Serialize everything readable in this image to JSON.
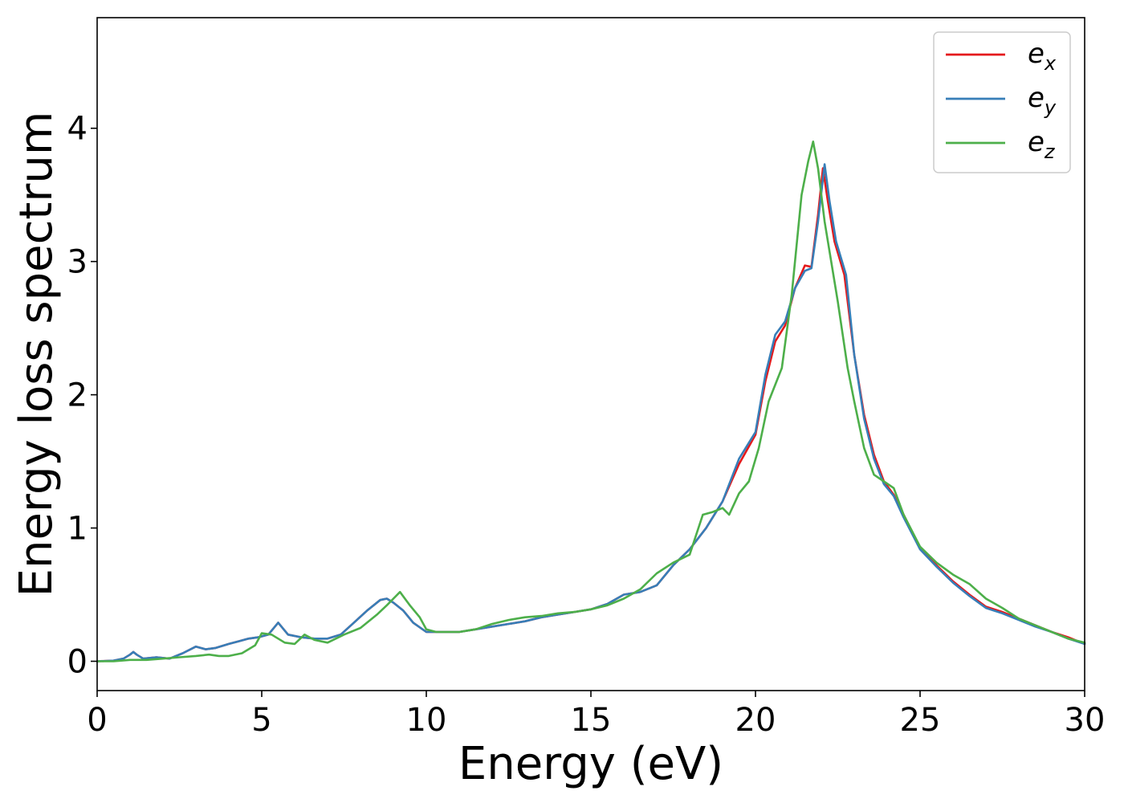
{
  "chart_data": {
    "type": "line",
    "title": "",
    "xlabel": "Energy (eV)",
    "ylabel": "Energy loss spectrum",
    "xlim": [
      0,
      30
    ],
    "ylim": [
      -0.22,
      4.83
    ],
    "xticks": [
      0,
      5,
      10,
      15,
      20,
      25,
      30
    ],
    "xtick_labels": [
      "0",
      "5",
      "10",
      "15",
      "20",
      "25",
      "30"
    ],
    "yticks": [
      0,
      1,
      2,
      3,
      4
    ],
    "ytick_labels": [
      "0",
      "1",
      "2",
      "3",
      "4"
    ],
    "grid": false,
    "legend_position": "top-right",
    "series": [
      {
        "name": "e_x",
        "label_main": "e",
        "label_sub": "x",
        "color": "#e41a1c",
        "x": [
          0,
          0.5,
          0.8,
          1.0,
          1.1,
          1.2,
          1.4,
          1.8,
          2.2,
          2.6,
          3.0,
          3.3,
          3.6,
          4.0,
          4.3,
          4.6,
          4.9,
          5.2,
          5.5,
          5.8,
          6.2,
          6.6,
          7.0,
          7.4,
          7.8,
          8.2,
          8.6,
          8.8,
          9.0,
          9.3,
          9.6,
          10.0,
          10.5,
          11.0,
          11.5,
          12.0,
          12.5,
          13.0,
          13.5,
          14.0,
          14.5,
          15.0,
          15.5,
          16.0,
          16.5,
          17.0,
          17.5,
          18.0,
          18.5,
          19.0,
          19.5,
          20.0,
          20.3,
          20.6,
          20.9,
          21.2,
          21.5,
          21.7,
          21.9,
          22.05,
          22.2,
          22.4,
          22.7,
          23.0,
          23.3,
          23.6,
          23.9,
          24.2,
          24.5,
          25.0,
          25.5,
          26.0,
          26.5,
          27.0,
          27.5,
          28.0,
          28.5,
          29.0,
          29.5,
          30.0
        ],
        "y": [
          0,
          0.005,
          0.02,
          0.05,
          0.07,
          0.05,
          0.02,
          0.03,
          0.02,
          0.06,
          0.11,
          0.09,
          0.1,
          0.13,
          0.15,
          0.17,
          0.18,
          0.2,
          0.29,
          0.2,
          0.18,
          0.17,
          0.17,
          0.2,
          0.29,
          0.38,
          0.46,
          0.47,
          0.44,
          0.38,
          0.29,
          0.22,
          0.22,
          0.22,
          0.24,
          0.26,
          0.28,
          0.3,
          0.33,
          0.35,
          0.37,
          0.39,
          0.43,
          0.5,
          0.52,
          0.57,
          0.72,
          0.84,
          1.0,
          1.2,
          1.48,
          1.7,
          2.1,
          2.4,
          2.52,
          2.8,
          2.97,
          2.96,
          3.35,
          3.7,
          3.45,
          3.15,
          2.9,
          2.3,
          1.85,
          1.55,
          1.35,
          1.25,
          1.1,
          0.85,
          0.72,
          0.6,
          0.5,
          0.41,
          0.37,
          0.32,
          0.27,
          0.22,
          0.18,
          0.13
        ]
      },
      {
        "name": "e_y",
        "label_main": "e",
        "label_sub": "y",
        "color": "#377eb8",
        "x": [
          0,
          0.5,
          0.8,
          1.0,
          1.1,
          1.2,
          1.4,
          1.8,
          2.2,
          2.6,
          3.0,
          3.3,
          3.6,
          4.0,
          4.3,
          4.6,
          4.9,
          5.2,
          5.5,
          5.8,
          6.2,
          6.6,
          7.0,
          7.4,
          7.8,
          8.2,
          8.6,
          8.8,
          9.0,
          9.3,
          9.6,
          10.0,
          10.5,
          11.0,
          11.5,
          12.0,
          12.5,
          13.0,
          13.5,
          14.0,
          14.5,
          15.0,
          15.5,
          16.0,
          16.5,
          17.0,
          17.5,
          18.0,
          18.5,
          19.0,
          19.5,
          20.0,
          20.3,
          20.6,
          20.9,
          21.2,
          21.5,
          21.7,
          21.9,
          22.1,
          22.25,
          22.45,
          22.75,
          23.0,
          23.3,
          23.6,
          23.9,
          24.2,
          24.5,
          25.0,
          25.5,
          26.0,
          26.5,
          27.0,
          27.5,
          28.0,
          28.5,
          29.0,
          29.5,
          30.0
        ],
        "y": [
          0,
          0.005,
          0.02,
          0.05,
          0.07,
          0.05,
          0.02,
          0.03,
          0.02,
          0.06,
          0.11,
          0.09,
          0.1,
          0.13,
          0.15,
          0.17,
          0.18,
          0.2,
          0.29,
          0.2,
          0.18,
          0.17,
          0.17,
          0.2,
          0.29,
          0.38,
          0.46,
          0.47,
          0.44,
          0.38,
          0.29,
          0.22,
          0.22,
          0.22,
          0.24,
          0.26,
          0.28,
          0.3,
          0.33,
          0.35,
          0.37,
          0.39,
          0.43,
          0.5,
          0.52,
          0.57,
          0.72,
          0.84,
          1.0,
          1.2,
          1.52,
          1.72,
          2.15,
          2.45,
          2.55,
          2.8,
          2.93,
          2.95,
          3.3,
          3.73,
          3.45,
          3.15,
          2.9,
          2.3,
          1.82,
          1.52,
          1.33,
          1.24,
          1.08,
          0.84,
          0.71,
          0.59,
          0.49,
          0.4,
          0.36,
          0.31,
          0.26,
          0.22,
          0.17,
          0.13
        ]
      },
      {
        "name": "e_z",
        "label_main": "e",
        "label_sub": "z",
        "color": "#4daf4a",
        "x": [
          0,
          0.5,
          1.0,
          1.5,
          2.0,
          2.5,
          3.0,
          3.4,
          3.7,
          4.0,
          4.4,
          4.8,
          5.0,
          5.3,
          5.7,
          6.0,
          6.3,
          6.6,
          7.0,
          7.5,
          8.0,
          8.5,
          8.8,
          9.0,
          9.2,
          9.5,
          9.8,
          10.0,
          10.3,
          10.7,
          11.0,
          11.5,
          12.0,
          12.5,
          13.0,
          13.5,
          14.0,
          14.5,
          15.0,
          15.5,
          16.0,
          16.5,
          17.0,
          17.5,
          18.0,
          18.4,
          18.7,
          19.0,
          19.2,
          19.5,
          19.8,
          20.1,
          20.4,
          20.8,
          21.1,
          21.4,
          21.6,
          21.75,
          21.9,
          22.1,
          22.3,
          22.5,
          22.8,
          23.0,
          23.3,
          23.6,
          23.9,
          24.2,
          24.5,
          25.0,
          25.5,
          26.0,
          26.5,
          27.0,
          27.5,
          28.0,
          28.5,
          29.0,
          29.5,
          30.0
        ],
        "y": [
          0,
          0.0,
          0.01,
          0.01,
          0.02,
          0.03,
          0.04,
          0.05,
          0.04,
          0.04,
          0.06,
          0.12,
          0.21,
          0.2,
          0.14,
          0.13,
          0.2,
          0.16,
          0.14,
          0.2,
          0.25,
          0.35,
          0.42,
          0.47,
          0.52,
          0.42,
          0.33,
          0.24,
          0.22,
          0.22,
          0.22,
          0.24,
          0.28,
          0.31,
          0.33,
          0.34,
          0.36,
          0.37,
          0.39,
          0.42,
          0.47,
          0.54,
          0.66,
          0.74,
          0.8,
          1.1,
          1.12,
          1.15,
          1.1,
          1.26,
          1.35,
          1.6,
          1.95,
          2.2,
          2.75,
          3.5,
          3.75,
          3.9,
          3.7,
          3.3,
          3.0,
          2.7,
          2.2,
          1.95,
          1.6,
          1.4,
          1.35,
          1.3,
          1.1,
          0.86,
          0.74,
          0.65,
          0.58,
          0.47,
          0.4,
          0.32,
          0.27,
          0.22,
          0.17,
          0.14
        ]
      }
    ]
  }
}
